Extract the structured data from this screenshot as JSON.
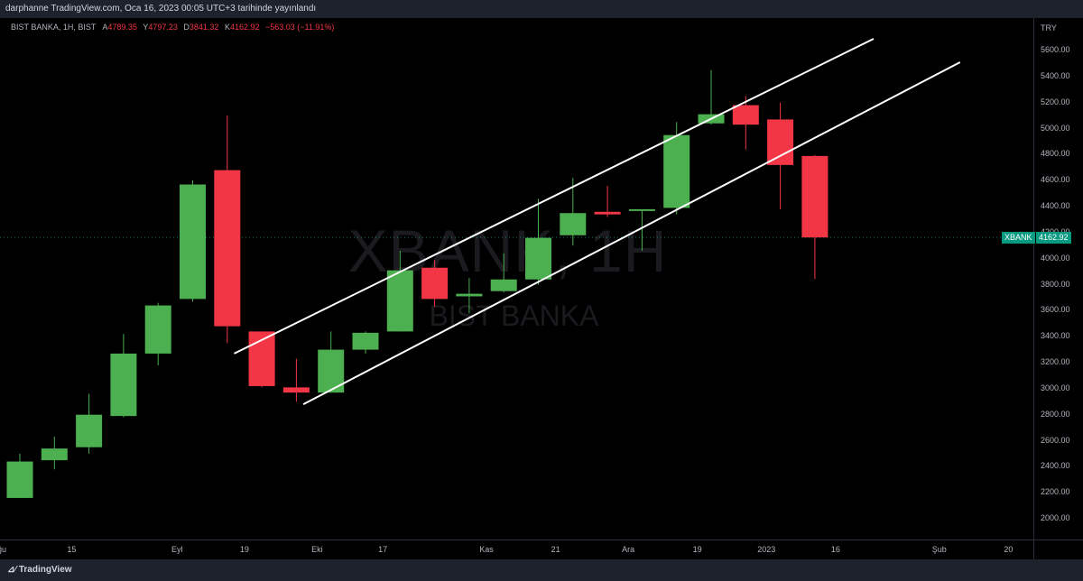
{
  "header": {
    "text": "darphanne TradingView.com, Oca 16, 2023 00:05 UTC+3 tarihinde yayınlandı"
  },
  "legend": {
    "symbol": "BIST BANKA, 1H, BIST",
    "open_label": "A",
    "open": "4789.35",
    "high_label": "Y",
    "high": "4797.23",
    "low_label": "D",
    "low": "3841.32",
    "close_label": "K",
    "close": "4162.92",
    "change": "−563.03 (−11.91%)"
  },
  "watermark": {
    "symbol": "XBANK, 1H",
    "name": "BIST BANKA"
  },
  "price_axis": {
    "currency": "TRY",
    "ticks": [
      "5600.00",
      "5400.00",
      "5200.00",
      "5000.00",
      "4800.00",
      "4600.00",
      "4400.00",
      "4200.00",
      "4000.00",
      "3800.00",
      "3600.00",
      "3400.00",
      "3200.00",
      "3000.00",
      "2800.00",
      "2600.00",
      "2400.00",
      "2200.00",
      "2000.00"
    ]
  },
  "time_axis": {
    "ticks": [
      {
        "label": "Ağu",
        "slot": -0.6
      },
      {
        "label": "15",
        "slot": 1.5
      },
      {
        "label": "Eyl",
        "slot": 4.55
      },
      {
        "label": "19",
        "slot": 6.5
      },
      {
        "label": "Eki",
        "slot": 8.6
      },
      {
        "label": "17",
        "slot": 10.5
      },
      {
        "label": "Kas",
        "slot": 13.5
      },
      {
        "label": "21",
        "slot": 15.5
      },
      {
        "label": "Ara",
        "slot": 17.6
      },
      {
        "label": "19",
        "slot": 19.6
      },
      {
        "label": "2023",
        "slot": 21.6
      },
      {
        "label": "16",
        "slot": 23.6
      },
      {
        "label": "Şub",
        "slot": 26.6
      },
      {
        "label": "20",
        "slot": 28.6
      }
    ]
  },
  "current_price": {
    "symbol_tag": "XBANK",
    "value_tag": "4162.92",
    "value": 4162.92
  },
  "colors": {
    "up": "#4caf50",
    "down": "#f23645",
    "channel": "#ffffff",
    "accent": "#089981"
  },
  "chart_data": {
    "type": "candlestick",
    "interval": "1H",
    "ylim": [
      1900,
      5700
    ],
    "candles": [
      {
        "o": 2160,
        "h": 2500,
        "l": 2160,
        "c": 2440
      },
      {
        "o": 2450,
        "h": 2630,
        "l": 2380,
        "c": 2540
      },
      {
        "o": 2550,
        "h": 2960,
        "l": 2500,
        "c": 2800
      },
      {
        "o": 2790,
        "h": 3420,
        "l": 2780,
        "c": 3270
      },
      {
        "o": 3270,
        "h": 3660,
        "l": 3180,
        "c": 3640
      },
      {
        "o": 3690,
        "h": 4600,
        "l": 3670,
        "c": 4570
      },
      {
        "o": 4680,
        "h": 5100,
        "l": 3350,
        "c": 3480
      },
      {
        "o": 3440,
        "h": 3440,
        "l": 3010,
        "c": 3020
      },
      {
        "o": 3010,
        "h": 3230,
        "l": 2900,
        "c": 2970
      },
      {
        "o": 2970,
        "h": 3440,
        "l": 2970,
        "c": 3300
      },
      {
        "o": 3300,
        "h": 3440,
        "l": 3270,
        "c": 3430
      },
      {
        "o": 3440,
        "h": 4060,
        "l": 3440,
        "c": 3910
      },
      {
        "o": 3930,
        "h": 3990,
        "l": 3630,
        "c": 3690
      },
      {
        "o": 3710,
        "h": 3850,
        "l": 3580,
        "c": 3730
      },
      {
        "o": 3750,
        "h": 4040,
        "l": 3740,
        "c": 3840
      },
      {
        "o": 3840,
        "h": 4460,
        "l": 3800,
        "c": 4160
      },
      {
        "o": 4180,
        "h": 4620,
        "l": 4100,
        "c": 4350
      },
      {
        "o": 4360,
        "h": 4560,
        "l": 4320,
        "c": 4340
      },
      {
        "o": 4380,
        "h": 4380,
        "l": 4060,
        "c": 4380
      },
      {
        "o": 4390,
        "h": 5050,
        "l": 4340,
        "c": 4950
      },
      {
        "o": 5040,
        "h": 5450,
        "l": 5030,
        "c": 5110
      },
      {
        "o": 5180,
        "h": 5250,
        "l": 4840,
        "c": 5030
      },
      {
        "o": 5070,
        "h": 5200,
        "l": 4380,
        "c": 4720
      },
      {
        "o": 4789.35,
        "h": 4797.23,
        "l": 3841.32,
        "c": 4162.92
      }
    ],
    "channel_lines": [
      {
        "from": {
          "slot": 6.2,
          "price": 3270
        },
        "to": {
          "slot": 24.7,
          "price": 5690
        }
      },
      {
        "from": {
          "slot": 8.2,
          "price": 2880
        },
        "to": {
          "slot": 27.2,
          "price": 5510
        }
      }
    ]
  }
}
